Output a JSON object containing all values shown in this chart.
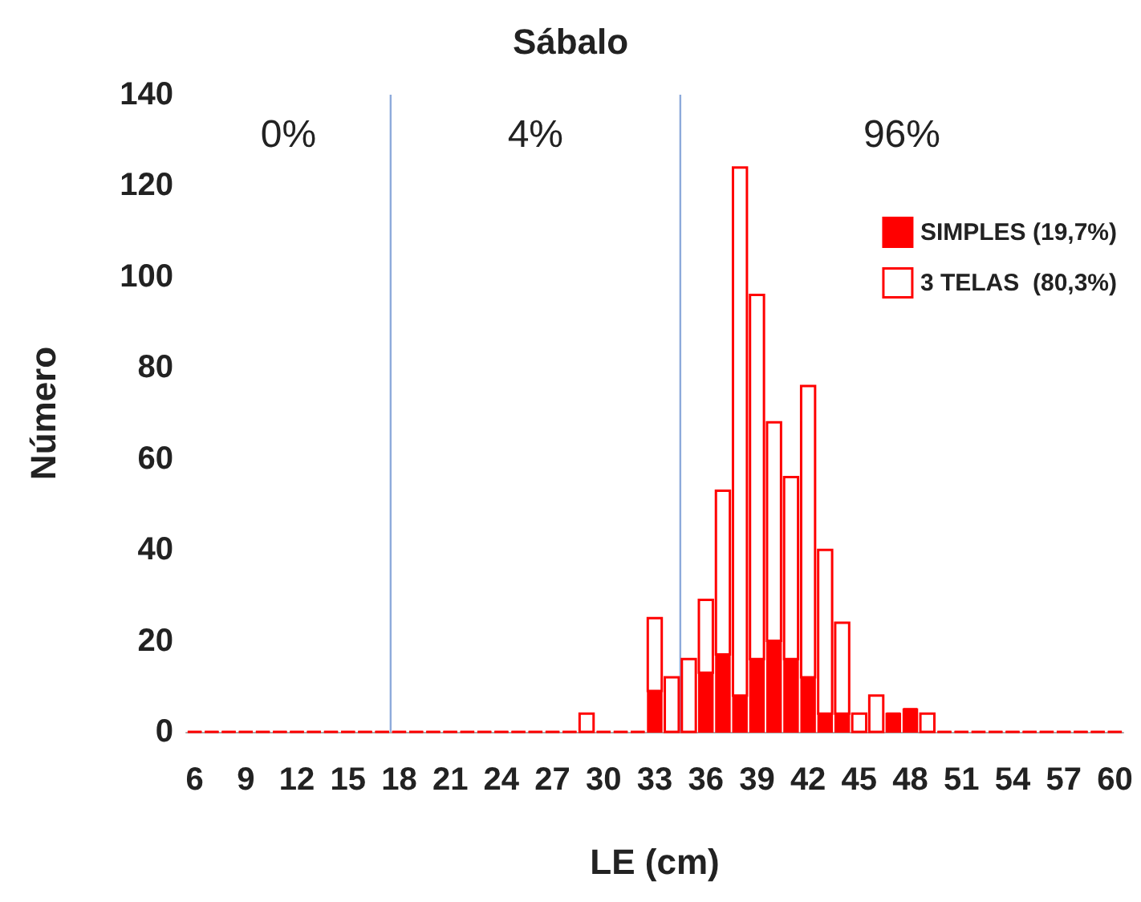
{
  "chart_data": {
    "type": "bar",
    "title": "Sábalo",
    "xlabel": "LE (cm)",
    "ylabel": "Número",
    "x": [
      6,
      7,
      8,
      9,
      10,
      11,
      12,
      13,
      14,
      15,
      16,
      17,
      18,
      19,
      20,
      21,
      22,
      23,
      24,
      25,
      26,
      27,
      28,
      29,
      30,
      31,
      32,
      33,
      34,
      35,
      36,
      37,
      38,
      39,
      40,
      41,
      42,
      43,
      44,
      45,
      46,
      47,
      48,
      49,
      50,
      51,
      52,
      53,
      54,
      55,
      56,
      57,
      58,
      59,
      60
    ],
    "stacked": true,
    "series": [
      {
        "name": "SIMPLES (19,7%)",
        "color": "#ff0000",
        "values": [
          0,
          0,
          0,
          0,
          0,
          0,
          0,
          0,
          0,
          0,
          0,
          0,
          0,
          0,
          0,
          0,
          0,
          0,
          0,
          0,
          0,
          0,
          0,
          0,
          0,
          0,
          0,
          9,
          0,
          0,
          13,
          17,
          8,
          16,
          20,
          16,
          12,
          4,
          4,
          0,
          0,
          4,
          5,
          0,
          0,
          0,
          0,
          0,
          0,
          0,
          0,
          0,
          0,
          0,
          0
        ]
      },
      {
        "name": "3 TELAS  (80,3%)",
        "color": "#ff0000",
        "values": [
          0,
          0,
          0,
          0,
          0,
          0,
          0,
          0,
          0,
          0,
          0,
          0,
          0,
          0,
          0,
          0,
          0,
          0,
          0,
          0,
          0,
          0,
          0,
          4,
          0,
          0,
          0,
          16,
          12,
          16,
          16,
          36,
          116,
          80,
          48,
          40,
          64,
          36,
          20,
          4,
          8,
          0,
          0,
          4,
          0,
          0,
          0,
          0,
          0,
          0,
          0,
          0,
          0,
          0,
          0
        ]
      }
    ],
    "xlim": [
      5.5,
      60.5
    ],
    "xticks": [
      6,
      9,
      12,
      15,
      18,
      21,
      24,
      27,
      30,
      33,
      36,
      39,
      42,
      45,
      48,
      51,
      54,
      57,
      60
    ],
    "ylim": [
      0,
      140
    ],
    "yticks": [
      0,
      20,
      40,
      60,
      80,
      100,
      120,
      140
    ],
    "ref_lines": [
      {
        "axis": "x",
        "value": 17.5,
        "color": "#8eaadb"
      },
      {
        "axis": "x",
        "value": 34.5,
        "color": "#8eaadb"
      }
    ],
    "annotations": [
      "0%",
      "4%",
      "96%"
    ],
    "grid": false,
    "legend": "top right"
  }
}
